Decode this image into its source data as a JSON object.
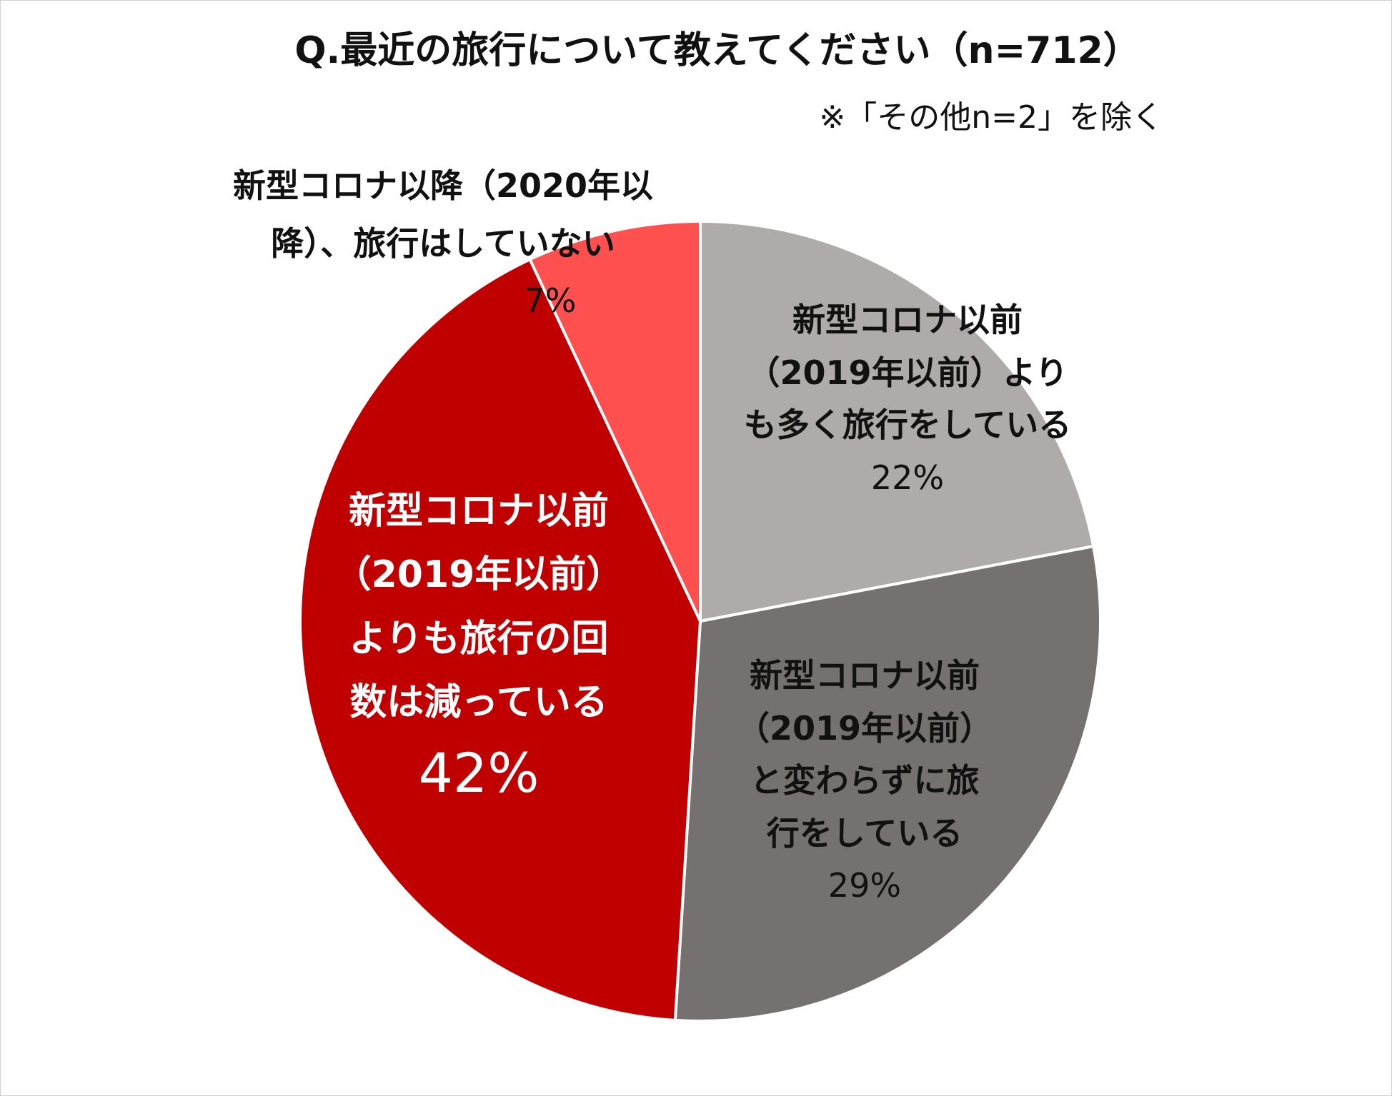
{
  "title": "Q.最近の旅行について教えてください（n=712）",
  "note": "※「その他n=2」を除く",
  "chart_data": {
    "type": "pie",
    "start_angle_deg": 0,
    "direction": "clockwise",
    "slices": [
      {
        "label_lines": [
          "新型コロナ以前",
          "（2019年以前）より",
          "も多く旅行をしている"
        ],
        "value": 22,
        "value_label": "22%",
        "color": "#AFABAB",
        "text_color": "#111111"
      },
      {
        "label_lines": [
          "新型コロナ以前",
          "（2019年以前）",
          "と変わらずに旅",
          "行をしている"
        ],
        "value": 29,
        "value_label": "29%",
        "color": "#767171",
        "text_color": "#111111"
      },
      {
        "label_lines": [
          "新型コロナ以前",
          "（2019年以前）",
          "よりも旅行の回",
          "数は減っている"
        ],
        "value": 42,
        "value_label": "42%",
        "color": "#C00000",
        "text_color": "#FFFFFF"
      },
      {
        "label_lines": [
          "新型コロナ以降（2020年以",
          "降）、旅行はしていない"
        ],
        "value": 7,
        "value_label": "7%",
        "color": "#FF5050",
        "text_color": "#111111"
      }
    ]
  }
}
